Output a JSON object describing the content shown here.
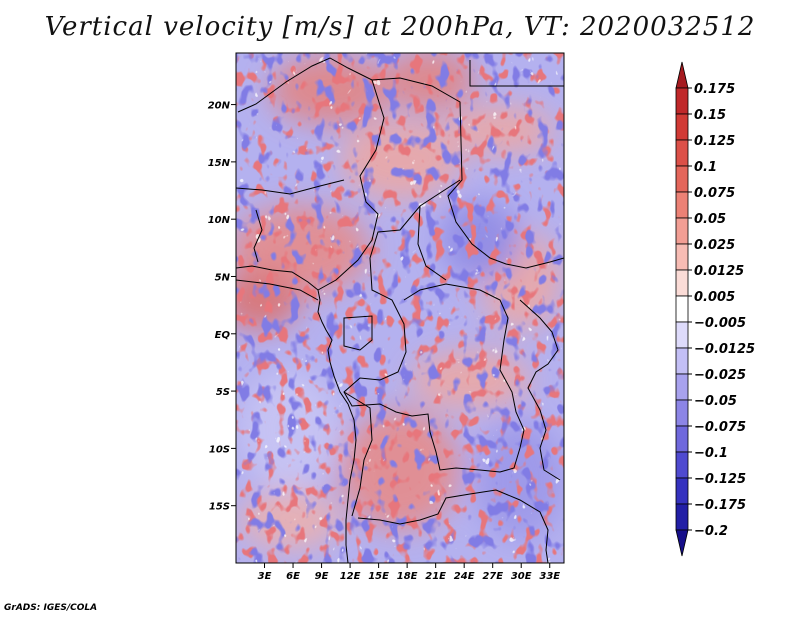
{
  "title": "Vertical velocity [m/s] at 200hPa, VT: 2020032512",
  "credit": "GrADS: IGES/COLA",
  "chart_data": {
    "type": "heatmap",
    "title": "Vertical velocity [m/s] at 200hPa, VT: 2020032512",
    "variable": "Vertical velocity",
    "units": "m/s",
    "level": "200hPa",
    "valid_time": "2020032512",
    "x_ticks": [
      "3E",
      "6E",
      "9E",
      "12E",
      "15E",
      "18E",
      "21E",
      "24E",
      "27E",
      "30E",
      "33E"
    ],
    "x_tick_values": [
      3,
      6,
      9,
      12,
      15,
      18,
      21,
      24,
      27,
      30,
      33
    ],
    "xlim": [
      0,
      34.5
    ],
    "y_ticks": [
      "20N",
      "15N",
      "10N",
      "5N",
      "EQ",
      "5S",
      "10S",
      "15S"
    ],
    "y_tick_values": [
      20,
      15,
      10,
      5,
      0,
      -5,
      -10,
      -15
    ],
    "ylim": [
      -20,
      24.5
    ],
    "colorbar_levels": [
      "0.175",
      "0.15",
      "0.125",
      "0.1",
      "0.075",
      "0.05",
      "0.025",
      "0.0125",
      "0.005",
      "−0.005",
      "−0.0125",
      "−0.025",
      "−0.05",
      "−0.075",
      "−0.1",
      "−0.125",
      "−0.175",
      "−0.2"
    ],
    "colorbar_colors": [
      "#a51a1f",
      "#c0282a",
      "#d13a35",
      "#dc5048",
      "#e4665b",
      "#ec8175",
      "#f29e94",
      "#f7bcb4",
      "#fbdcd7",
      "#ffffff",
      "#dedbfb",
      "#c3bff5",
      "#a8a2ee",
      "#8c85e6",
      "#6f68dc",
      "#4f4ad0",
      "#3532bf",
      "#221fa6",
      "#160f8a"
    ]
  }
}
